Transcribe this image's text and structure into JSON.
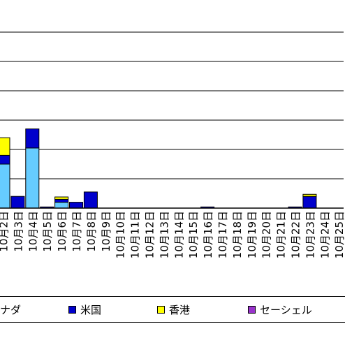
{
  "chart_data": {
    "type": "bar",
    "stacked": true,
    "grid": true,
    "ylim": [
      0,
      6
    ],
    "categories": [
      "10月2日",
      "10月3日",
      "10月4日",
      "10月5日",
      "10月6日",
      "10月7日",
      "10月8日",
      "10月9日",
      "10月10日",
      "10月11日",
      "10月12日",
      "10月13日",
      "10月14日",
      "10月15日",
      "10月16日",
      "10月17日",
      "10月18日",
      "10月19日",
      "10月20日",
      "10月21日",
      "10月22日",
      "10月23日",
      "10月24日",
      "10月25日"
    ],
    "series": [
      {
        "name": "",
        "color": "#66ccff",
        "values": [
          1.5,
          0,
          2.05,
          0,
          0.2,
          0,
          0,
          0,
          0,
          0,
          0,
          0,
          0,
          0,
          0,
          0,
          0,
          0,
          0,
          0,
          0,
          0,
          0,
          0
        ]
      },
      {
        "name": "米国",
        "color": "#0000cc",
        "values": [
          0.3,
          0.4,
          0.65,
          0.04,
          0.1,
          0.2,
          0.55,
          0,
          0,
          0,
          0,
          0,
          0,
          0,
          0.04,
          0,
          0,
          0,
          0,
          0,
          0.04,
          0.4,
          0,
          0
        ]
      },
      {
        "name": "香港",
        "color": "#ffff00",
        "values": [
          0.6,
          0,
          0,
          0,
          0.08,
          0,
          0,
          0,
          0,
          0,
          0,
          0,
          0,
          0,
          0,
          0,
          0,
          0,
          0,
          0,
          0,
          0.07,
          0,
          0
        ]
      },
      {
        "name": "セーシェル",
        "color": "#9933cc",
        "values": [
          0,
          0,
          0,
          0,
          0,
          0,
          0,
          0,
          0,
          0,
          0,
          0,
          0,
          0,
          0,
          0,
          0,
          0,
          0,
          0,
          0,
          0,
          0,
          0
        ]
      }
    ],
    "legend": {
      "position": "bottom",
      "entries": [
        {
          "label": "ナダ",
          "color": "#66ccff",
          "clipped": true
        },
        {
          "label": "米国",
          "color": "#0000cc"
        },
        {
          "label": "香港",
          "color": "#ffff00"
        },
        {
          "label": "セーシェル",
          "color": "#9933cc",
          "clipped": true
        }
      ]
    }
  }
}
